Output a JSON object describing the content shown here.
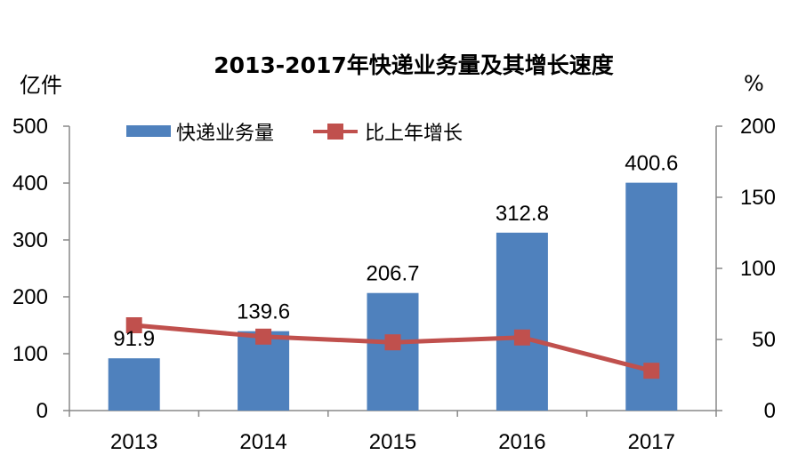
{
  "chart_data": {
    "type": "bar+line",
    "title": "2013-2017年快递业务量及其增长速度",
    "categories": [
      "2013",
      "2014",
      "2015",
      "2016",
      "2017"
    ],
    "y_left": {
      "unit": "亿件",
      "ylim": [
        0,
        500
      ],
      "ticks": [
        "0",
        "100",
        "200",
        "300",
        "400",
        "500"
      ]
    },
    "y_right": {
      "unit": "%",
      "ylim": [
        0,
        200
      ],
      "ticks": [
        "0",
        "50",
        "100",
        "150",
        "200"
      ]
    },
    "series": [
      {
        "name": "快递业务量",
        "type": "bar",
        "axis": "left",
        "color": "#4F81BD",
        "values": [
          91.9,
          139.6,
          206.7,
          312.8,
          400.6
        ],
        "labels": [
          "91.9",
          "139.6",
          "206.7",
          "312.8",
          "400.6"
        ]
      },
      {
        "name": "比上年增长",
        "type": "line",
        "axis": "right",
        "color": "#C0504D",
        "marker": "square",
        "values": [
          60.0,
          52.0,
          48.0,
          51.4,
          28.0
        ]
      }
    ],
    "grid": false,
    "legend_position": "top-left"
  }
}
